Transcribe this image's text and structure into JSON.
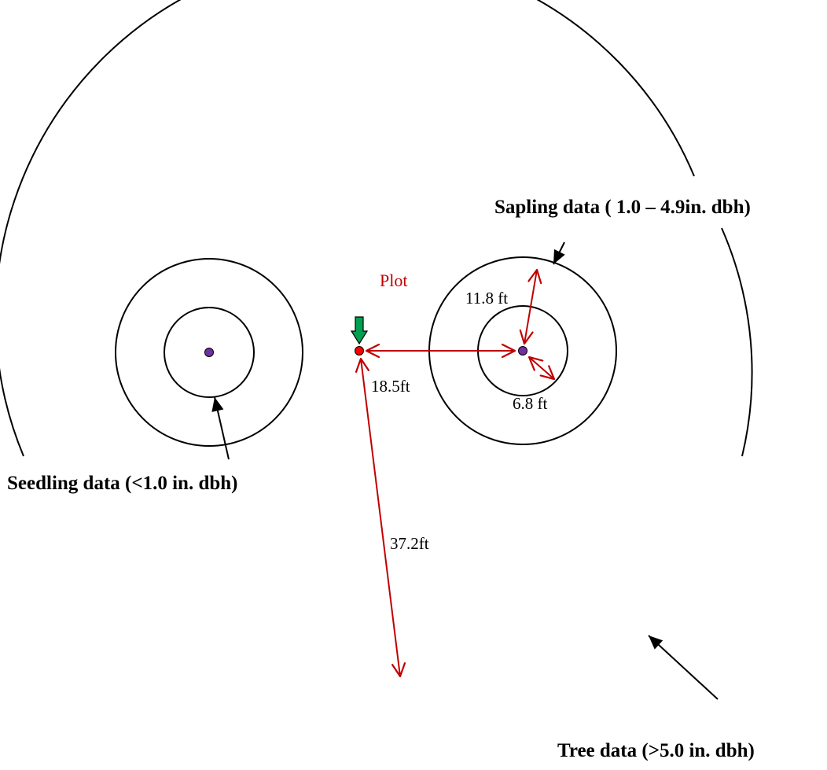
{
  "labels": {
    "sapling": "Sapling data ( 1.0 – 4.9in. dbh)",
    "seedling": "Seedling data (<1.0 in. dbh)",
    "tree": "Tree data (>5.0 in. dbh)",
    "plot": "Plot"
  },
  "dimensions": {
    "subplot_outer_radius": "11.8 ft",
    "subplot_inner_radius": "6.8 ft",
    "center_to_subplot": "18.5ft",
    "tree_radius": "37.2ft"
  },
  "colors": {
    "line": "#000000",
    "dimension": "#c00000",
    "plot_center_fill": "#ff0000",
    "subplot_center_fill": "#7030a0",
    "pointer_arrow": "#00a050"
  }
}
